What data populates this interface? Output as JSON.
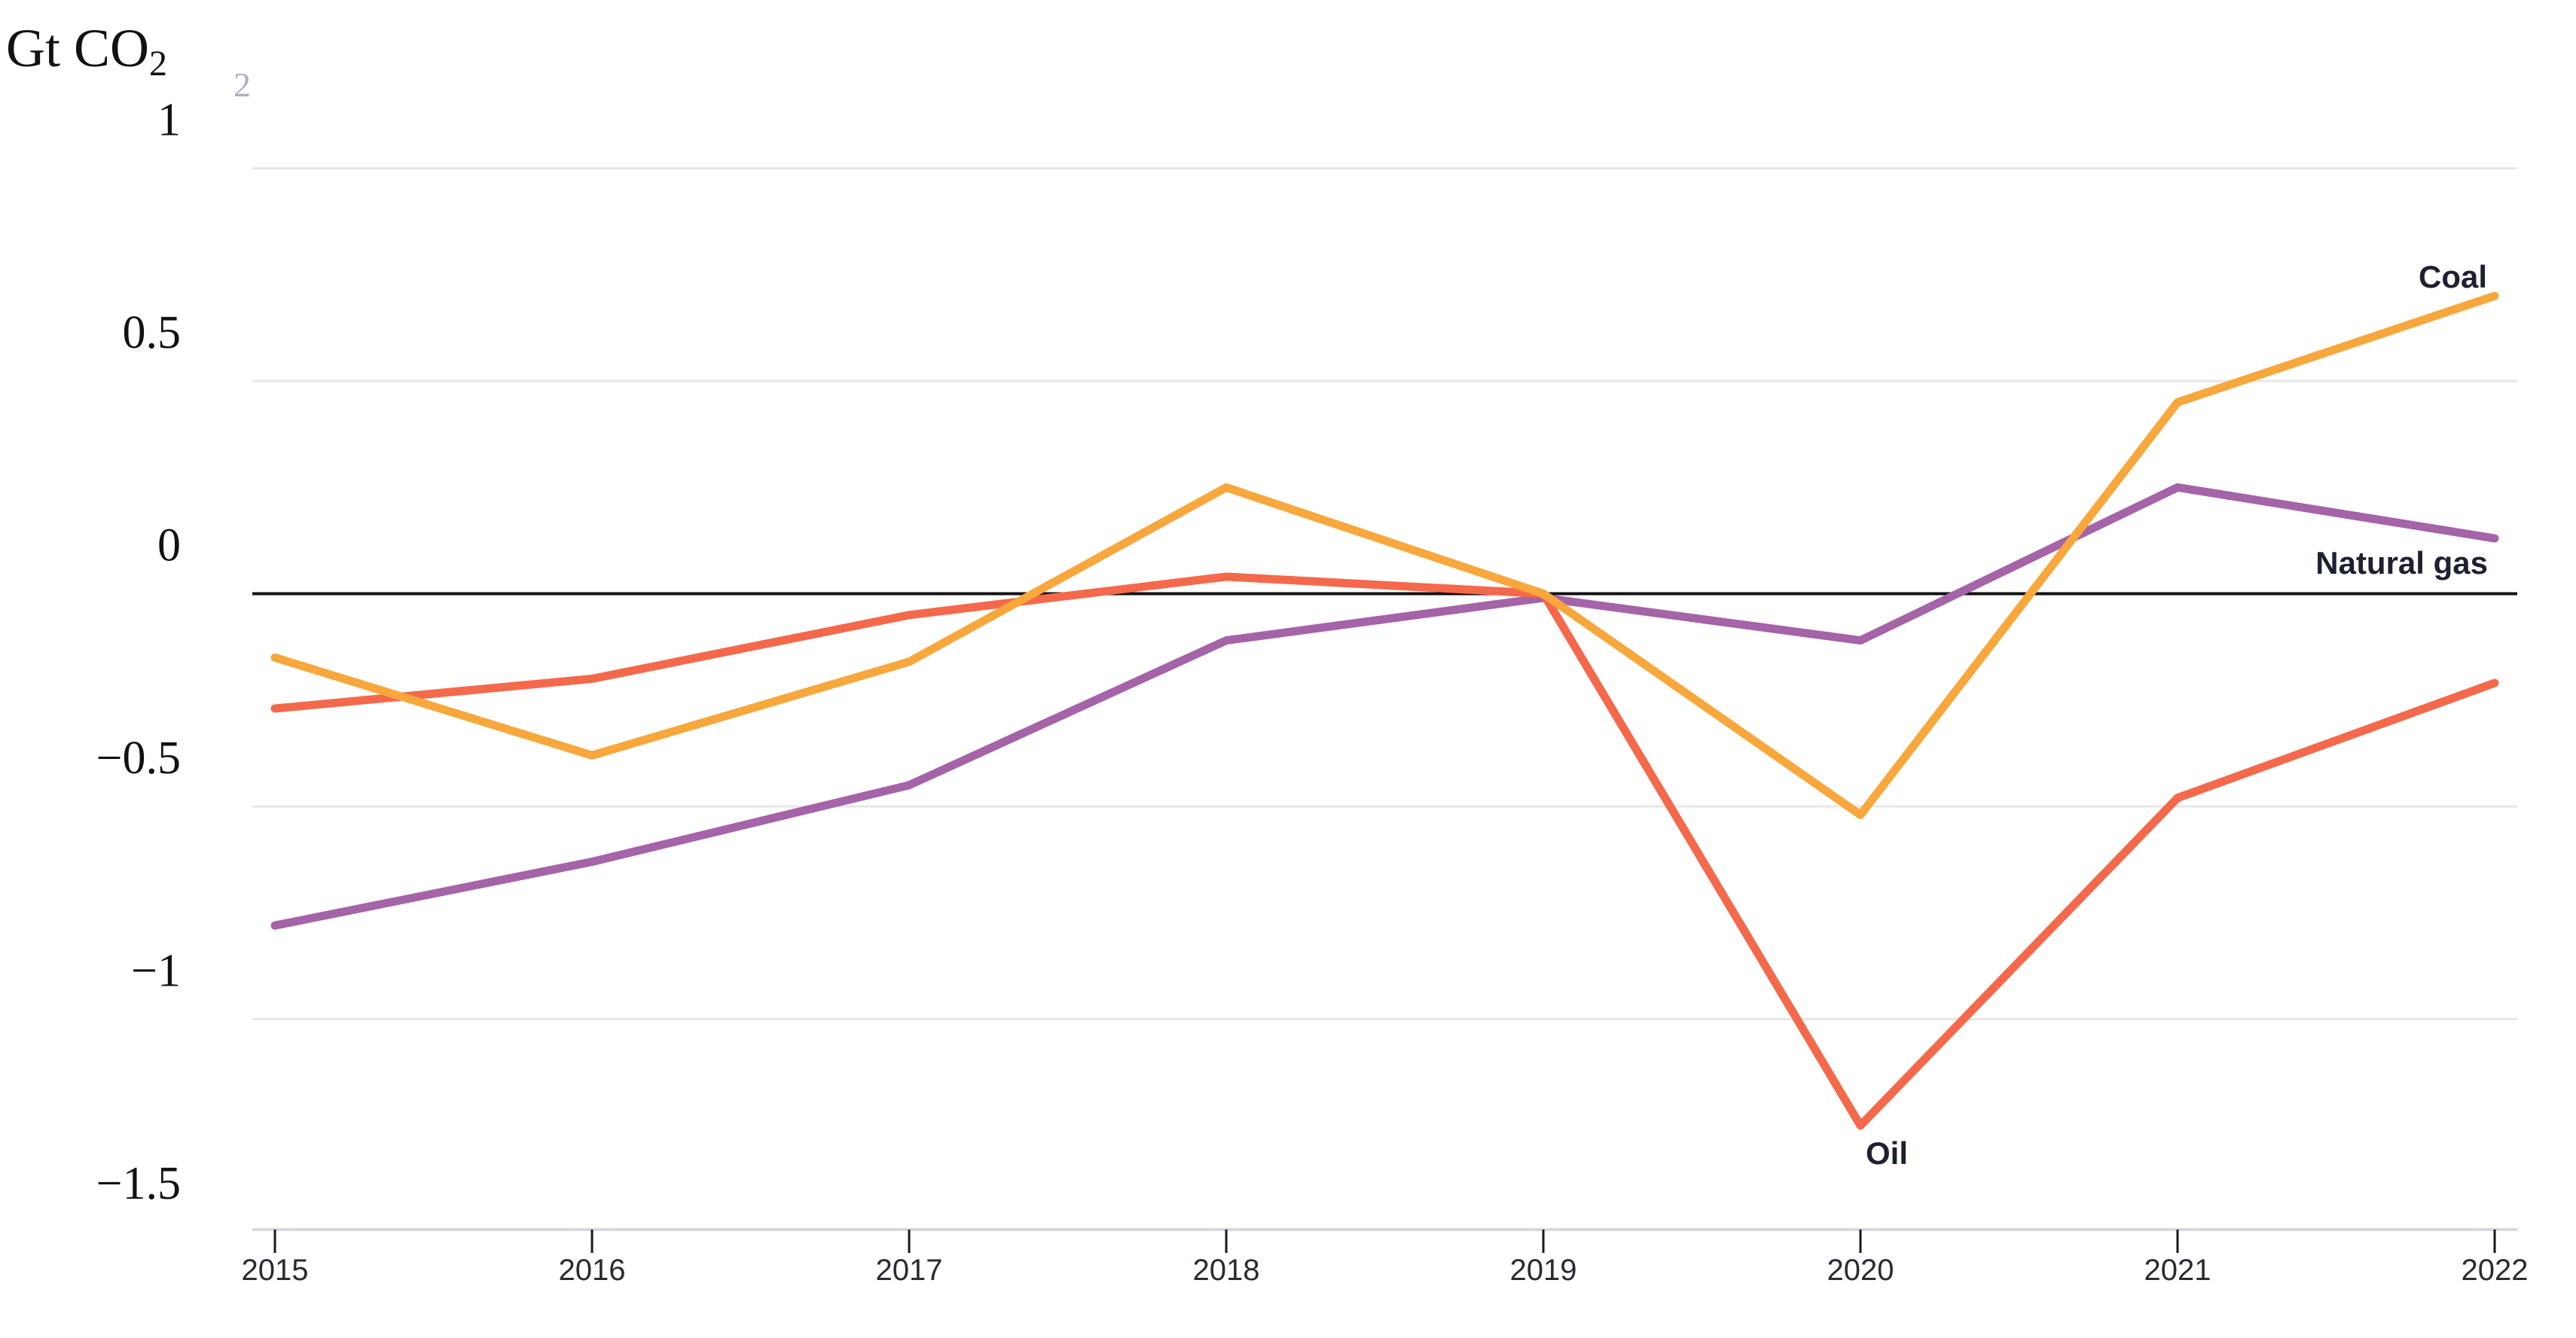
{
  "chart_data": {
    "type": "line",
    "title": "",
    "unit_label": "Gt CO",
    "unit_label_subscript": "2",
    "stray_superscript": "2",
    "x": [
      2015,
      2016,
      2017,
      2018,
      2019,
      2020,
      2021,
      2022
    ],
    "x_tick_labels": [
      "2015",
      "2016",
      "2017",
      "2018",
      "2019",
      "2020",
      "2021",
      "2022"
    ],
    "y_ticks": [
      {
        "value": 1,
        "label": "1"
      },
      {
        "value": 0.5,
        "label": "0.5"
      },
      {
        "value": 0,
        "label": "0"
      },
      {
        "value": -0.5,
        "label": "−0.5"
      },
      {
        "value": -1,
        "label": "−1"
      },
      {
        "value": -1.5,
        "label": "−1.5"
      }
    ],
    "ylim": [
      -1.5,
      1
    ],
    "grid": "horizontal",
    "zero_line": true,
    "legend_position": "inline-labels-at-line",
    "series": [
      {
        "name": "Natural gas",
        "color": "#a563a8",
        "values": [
          -0.78,
          -0.63,
          -0.45,
          -0.11,
          -0.01,
          -0.11,
          0.25,
          0.13
        ]
      },
      {
        "name": "Oil",
        "color": "#f4694b",
        "values": [
          -0.27,
          -0.2,
          -0.05,
          0.04,
          0.0,
          -1.25,
          -0.48,
          -0.21
        ]
      },
      {
        "name": "Coal",
        "color": "#f7a73c",
        "values": [
          -0.15,
          -0.38,
          -0.16,
          0.25,
          0.0,
          -0.52,
          0.45,
          0.7
        ]
      }
    ]
  },
  "colors": {
    "background": "#ffffff",
    "gridline": "#e7e7e7",
    "zero_line": "#111111",
    "axis_line": "#d6d8de",
    "tick_mark": "#1a1a1a",
    "y_label": "#121212",
    "x_label": "#272b33",
    "series_label": "#1d2130",
    "stray_glyph": "#a9b3c2"
  }
}
